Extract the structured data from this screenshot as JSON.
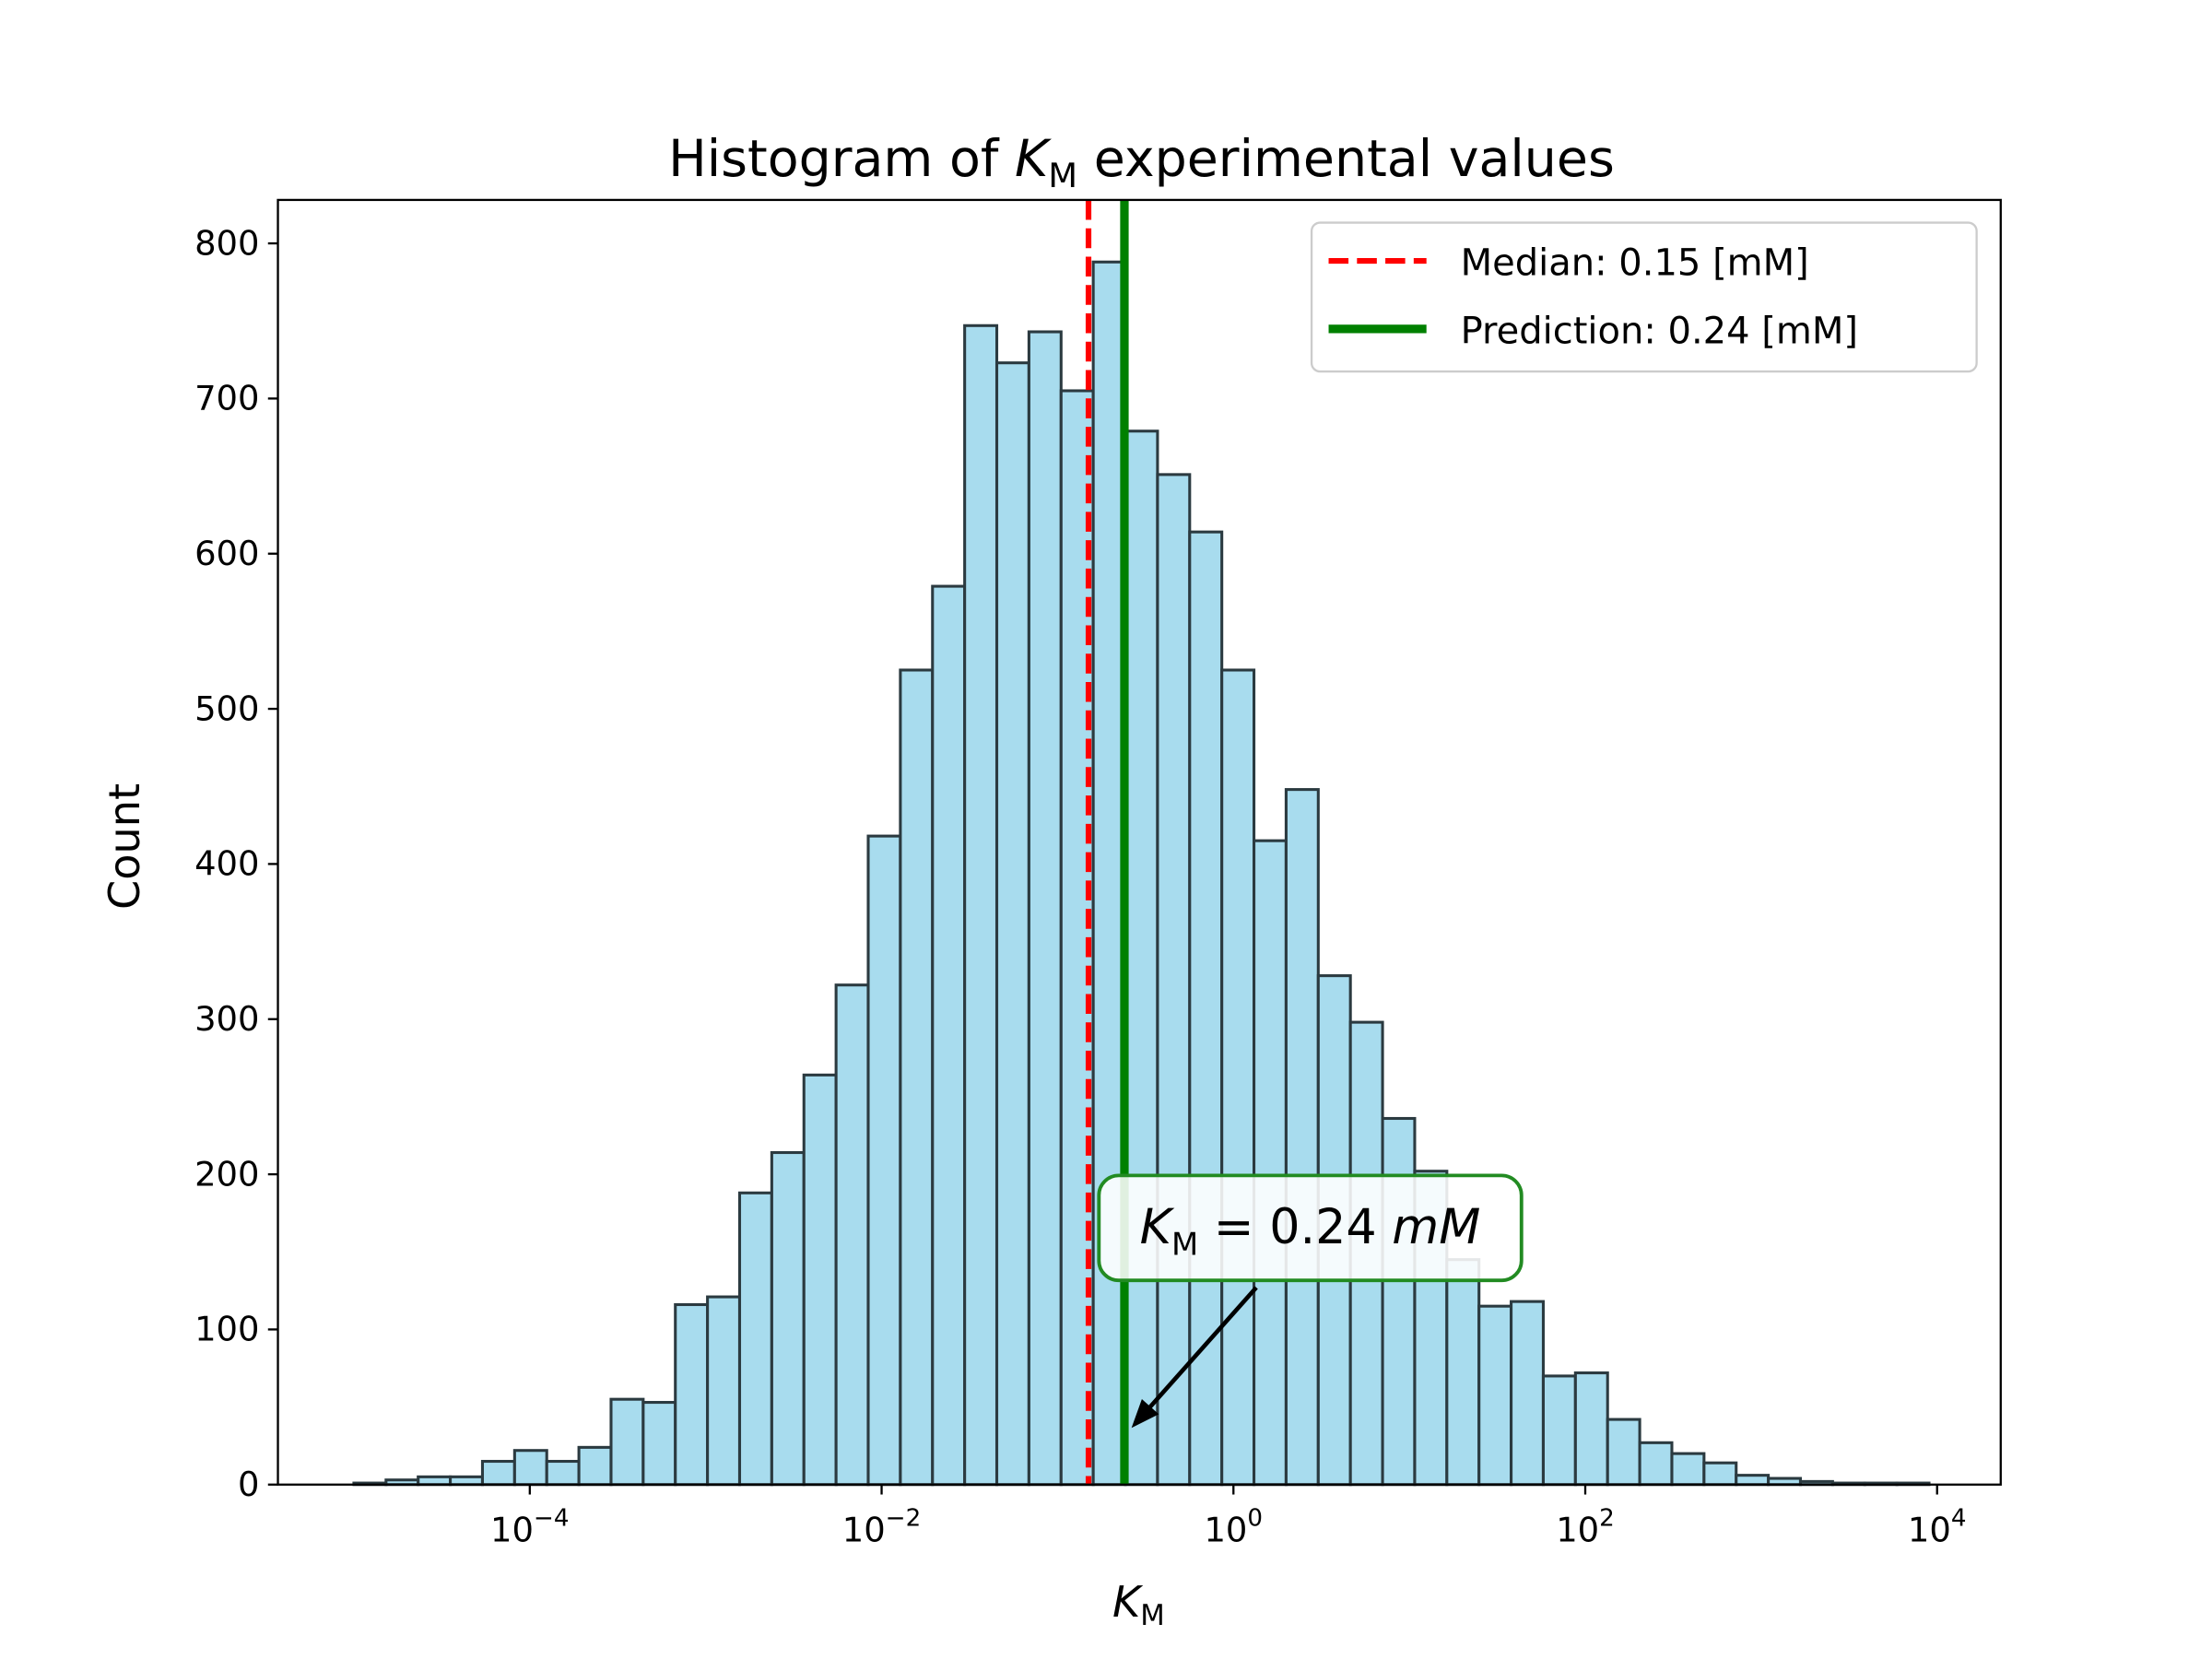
{
  "chart_data": {
    "type": "bar",
    "subtype": "histogram",
    "title_prefix": "Histogram of ",
    "title_var": "K",
    "title_sub": "M",
    "title_suffix": " experimental values",
    "xlabel_var": "K",
    "xlabel_sub": "M",
    "ylabel": "Count",
    "x_scale": "log",
    "xlim": [
      3.7e-06,
      23000.0
    ],
    "ylim": [
      0,
      828
    ],
    "x_ticks": [
      {
        "exp": "−4",
        "value": 0.0001
      },
      {
        "exp": "−2",
        "value": 0.01
      },
      {
        "exp": "0",
        "value": 1
      },
      {
        "exp": "2",
        "value": 100
      },
      {
        "exp": "4",
        "value": 10000
      }
    ],
    "y_ticks": [
      0,
      100,
      200,
      300,
      400,
      500,
      600,
      700,
      800
    ],
    "bin_range": [
      1e-05,
      9000.0
    ],
    "counts": [
      1,
      3,
      5,
      5,
      15,
      22,
      15,
      24,
      55,
      53,
      116,
      121,
      188,
      214,
      264,
      322,
      418,
      525,
      579,
      747,
      723,
      743,
      705,
      788,
      679,
      651,
      614,
      525,
      415,
      448,
      328,
      298,
      236,
      202,
      145,
      115,
      118,
      70,
      72,
      42,
      27,
      20,
      14,
      6,
      4,
      2,
      1,
      1,
      1
    ],
    "bar_color": "#a8dcee",
    "bar_edge": "#2b3a40",
    "grid": false,
    "median": {
      "value": 0.15,
      "label": "Median: 0.15 [mM]",
      "color": "#ff0000",
      "style": "dashed"
    },
    "prediction": {
      "value": 0.24,
      "label": "Prediction: 0.24 [mM]",
      "color": "#008000",
      "style": "solid"
    },
    "legend_position": "top-right",
    "annotation": {
      "var": "K",
      "sub": "M",
      "text": " = 0.24 ",
      "unit": "mM",
      "target": 0.24,
      "border_color": "#228b22"
    }
  }
}
